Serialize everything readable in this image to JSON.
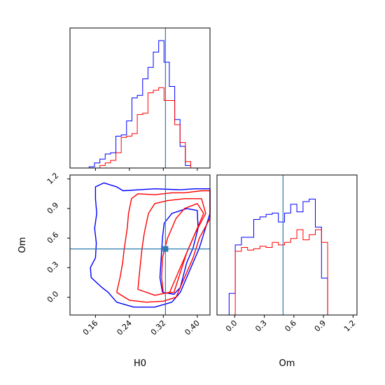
{
  "chart_data": {
    "type": "corner",
    "parameters": [
      "H0",
      "Om"
    ],
    "truth": {
      "H0": 0.325,
      "Om": 0.49
    },
    "colors": {
      "blue": "#0000ff",
      "red": "#ff0000",
      "truth": "#2a7ab0"
    },
    "axes": {
      "H0": {
        "label": "H0",
        "range": [
          0.1,
          0.43
        ],
        "ticks": [
          0.16,
          0.24,
          0.32,
          0.4
        ],
        "tick_labels": [
          "0.16",
          "0.24",
          "0.32",
          "0.40"
        ]
      },
      "Om": {
        "label": "Om",
        "range": [
          -0.18,
          1.24
        ],
        "ticks": [
          0.0,
          0.3,
          0.6,
          0.9,
          1.2
        ],
        "tick_labels": [
          "0.0",
          "0.3",
          "0.6",
          "0.9",
          "1.2"
        ]
      }
    },
    "hist_h0": {
      "bins_start": 0.12,
      "bin_width": 0.0126,
      "blue": [
        0.0,
        0.0,
        0.01,
        0.04,
        0.07,
        0.11,
        0.12,
        0.25,
        0.26,
        0.37,
        0.55,
        0.57,
        0.7,
        0.79,
        0.91,
        1.0,
        0.83,
        0.64,
        0.38,
        0.17,
        0.02
      ],
      "red": [
        0.0,
        0.0,
        0.0,
        0.0,
        0.02,
        0.04,
        0.06,
        0.12,
        0.24,
        0.25,
        0.27,
        0.42,
        0.43,
        0.59,
        0.61,
        0.63,
        0.53,
        0.53,
        0.34,
        0.2,
        0.05
      ]
    },
    "hist_om": {
      "bins_start": -0.12,
      "bin_width": 0.0625,
      "blue": [
        0.0,
        0.17,
        0.55,
        0.61,
        0.61,
        0.75,
        0.77,
        0.79,
        0.8,
        0.73,
        0.8,
        0.87,
        0.81,
        0.89,
        0.91,
        0.69,
        0.29,
        0.0
      ],
      "red": [
        0.0,
        0.0,
        0.5,
        0.53,
        0.51,
        0.52,
        0.54,
        0.53,
        0.57,
        0.55,
        0.57,
        0.6,
        0.67,
        0.59,
        0.63,
        0.67,
        0.57,
        0.0
      ]
    },
    "contours": {
      "blue": [
        [
          [
            0.19,
            0.05
          ],
          [
            0.175,
            0.1
          ],
          [
            0.15,
            0.2
          ],
          [
            0.148,
            0.3
          ],
          [
            0.16,
            0.4
          ],
          [
            0.162,
            0.55
          ],
          [
            0.158,
            0.7
          ],
          [
            0.163,
            0.85
          ],
          [
            0.16,
            1.0
          ],
          [
            0.16,
            1.12
          ],
          [
            0.18,
            1.16
          ],
          [
            0.21,
            1.12
          ],
          [
            0.225,
            1.08
          ],
          [
            0.3,
            1.1
          ],
          [
            0.36,
            1.09
          ],
          [
            0.395,
            1.1
          ],
          [
            0.43,
            1.1
          ],
          [
            0.43,
            0.85
          ],
          [
            0.405,
            0.5
          ],
          [
            0.38,
            0.25
          ],
          [
            0.36,
            0.05
          ],
          [
            0.34,
            -0.05
          ],
          [
            0.3,
            -0.1
          ],
          [
            0.25,
            -0.1
          ],
          [
            0.21,
            -0.05
          ],
          [
            0.19,
            0.05
          ]
        ],
        [
          [
            0.318,
            0.05
          ],
          [
            0.312,
            0.2
          ],
          [
            0.315,
            0.4
          ],
          [
            0.318,
            0.6
          ],
          [
            0.322,
            0.75
          ],
          [
            0.34,
            0.85
          ],
          [
            0.375,
            0.9
          ],
          [
            0.4,
            0.88
          ],
          [
            0.402,
            0.7
          ],
          [
            0.39,
            0.5
          ],
          [
            0.375,
            0.35
          ],
          [
            0.36,
            0.1
          ],
          [
            0.345,
            0.03
          ],
          [
            0.318,
            0.05
          ]
        ]
      ],
      "red": [
        [
          [
            0.21,
            0.05
          ],
          [
            0.218,
            0.2
          ],
          [
            0.224,
            0.35
          ],
          [
            0.228,
            0.5
          ],
          [
            0.235,
            0.7
          ],
          [
            0.238,
            0.85
          ],
          [
            0.245,
            1.0
          ],
          [
            0.26,
            1.05
          ],
          [
            0.3,
            1.04
          ],
          [
            0.34,
            1.06
          ],
          [
            0.37,
            1.06
          ],
          [
            0.41,
            1.08
          ],
          [
            0.43,
            1.08
          ],
          [
            0.43,
            0.8
          ],
          [
            0.405,
            0.6
          ],
          [
            0.39,
            0.4
          ],
          [
            0.37,
            0.2
          ],
          [
            0.35,
            0.0
          ],
          [
            0.32,
            -0.04
          ],
          [
            0.28,
            -0.05
          ],
          [
            0.24,
            -0.03
          ],
          [
            0.21,
            0.05
          ]
        ],
        [
          [
            0.26,
            0.08
          ],
          [
            0.265,
            0.3
          ],
          [
            0.27,
            0.5
          ],
          [
            0.275,
            0.65
          ],
          [
            0.285,
            0.85
          ],
          [
            0.3,
            0.95
          ],
          [
            0.33,
            0.98
          ],
          [
            0.37,
            1.0
          ],
          [
            0.41,
            1.0
          ],
          [
            0.42,
            0.85
          ],
          [
            0.395,
            0.65
          ],
          [
            0.375,
            0.45
          ],
          [
            0.355,
            0.25
          ],
          [
            0.335,
            0.05
          ],
          [
            0.3,
            0.02
          ],
          [
            0.26,
            0.08
          ]
        ],
        [
          [
            0.32,
            0.04
          ],
          [
            0.316,
            0.2
          ],
          [
            0.318,
            0.4
          ],
          [
            0.33,
            0.6
          ],
          [
            0.35,
            0.8
          ],
          [
            0.37,
            0.9
          ],
          [
            0.4,
            0.95
          ],
          [
            0.415,
            0.85
          ],
          [
            0.395,
            0.65
          ],
          [
            0.375,
            0.45
          ],
          [
            0.36,
            0.25
          ],
          [
            0.345,
            0.05
          ],
          [
            0.32,
            0.04
          ]
        ]
      ]
    }
  }
}
